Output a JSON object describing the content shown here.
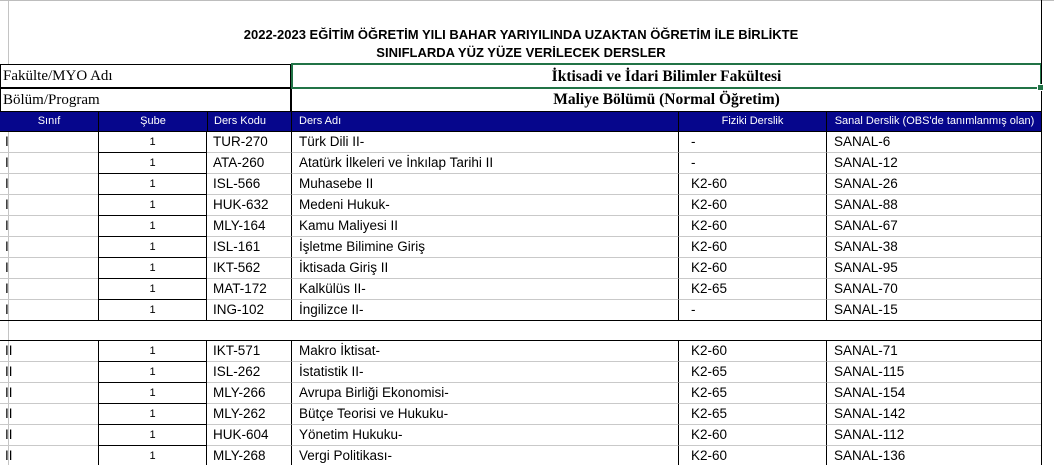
{
  "title": {
    "line1": "2022-2023 EĞİTİM ÖĞRETİM YILI BAHAR YARIYILINDA UZAKTAN ÖĞRETİM İLE BİRLİKTE",
    "line2": "SINIFLARDA YÜZ YÜZE VERİLECEK DERSLER"
  },
  "info": {
    "faculty_label": "Fakülte/MYO Adı",
    "faculty_value": "İktisadi ve İdari Bilimler Fakültesi",
    "program_label": "Bölüm/Program",
    "program_value": "Maliye Bölümü (Normal Öğretim)"
  },
  "table": {
    "headers": [
      "Sınıf",
      "Şube",
      "Ders Kodu",
      "Ders Adı",
      "Fiziki Derslik",
      "Sanal Derslik (OBS'de tanımlanmış olan)"
    ],
    "sections": [
      {
        "rows": [
          {
            "sinif": "I",
            "sube": "1",
            "kod": "TUR-270",
            "ad": "Türk Dili II-",
            "fiziki": "-",
            "sanal": "SANAL-6"
          },
          {
            "sinif": "I",
            "sube": "1",
            "kod": "ATA-260",
            "ad": "Atatürk İlkeleri ve İnkılap Tarihi II",
            "fiziki": "-",
            "sanal": "SANAL-12"
          },
          {
            "sinif": "I",
            "sube": "1",
            "kod": "ISL-566",
            "ad": "Muhasebe II",
            "fiziki": "K2-60",
            "sanal": "SANAL-26"
          },
          {
            "sinif": "I",
            "sube": "1",
            "kod": "HUK-632",
            "ad": "Medeni Hukuk-",
            "fiziki": "K2-60",
            "sanal": "SANAL-88"
          },
          {
            "sinif": "I",
            "sube": "1",
            "kod": "MLY-164",
            "ad": "Kamu Maliyesi II",
            "fiziki": "K2-60",
            "sanal": "SANAL-67"
          },
          {
            "sinif": "I",
            "sube": "1",
            "kod": "ISL-161",
            "ad": "İşletme Bilimine Giriş",
            "fiziki": "K2-60",
            "sanal": "SANAL-38"
          },
          {
            "sinif": "I",
            "sube": "1",
            "kod": "IKT-562",
            "ad": "İktisada Giriş II",
            "fiziki": "K2-60",
            "sanal": "SANAL-95"
          },
          {
            "sinif": "I",
            "sube": "1",
            "kod": "MAT-172",
            "ad": "Kalkülüs II-",
            "fiziki": "K2-65",
            "sanal": "SANAL-70"
          },
          {
            "sinif": "I",
            "sube": "1",
            "kod": "ING-102",
            "ad": "İngilizce II-",
            "fiziki": "-",
            "sanal": "SANAL-15"
          }
        ]
      },
      {
        "rows": [
          {
            "sinif": "II",
            "sube": "1",
            "kod": "IKT-571",
            "ad": "Makro İktisat-",
            "fiziki": "K2-60",
            "sanal": "SANAL-71"
          },
          {
            "sinif": "II",
            "sube": "1",
            "kod": "ISL-262",
            "ad": "İstatistik II-",
            "fiziki": "K2-65",
            "sanal": "SANAL-115"
          },
          {
            "sinif": "II",
            "sube": "1",
            "kod": "MLY-266",
            "ad": "Avrupa Birliği Ekonomisi-",
            "fiziki": "K2-65",
            "sanal": "SANAL-154"
          },
          {
            "sinif": "II",
            "sube": "1",
            "kod": "MLY-262",
            "ad": "Bütçe Teorisi ve Hukuku-",
            "fiziki": "K2-65",
            "sanal": "SANAL-142"
          },
          {
            "sinif": "II",
            "sube": "1",
            "kod": "HUK-604",
            "ad": "Yönetim Hukuku-",
            "fiziki": "K2-60",
            "sanal": "SANAL-112"
          },
          {
            "sinif": "II",
            "sube": "1",
            "kod": "MLY-268",
            "ad": "Vergi Politikası-",
            "fiziki": "K2-60",
            "sanal": "SANAL-136"
          }
        ]
      }
    ]
  },
  "colors": {
    "header_bg": "#06068C",
    "selection_green": "#217346",
    "gridline": "#C9C9C9"
  }
}
